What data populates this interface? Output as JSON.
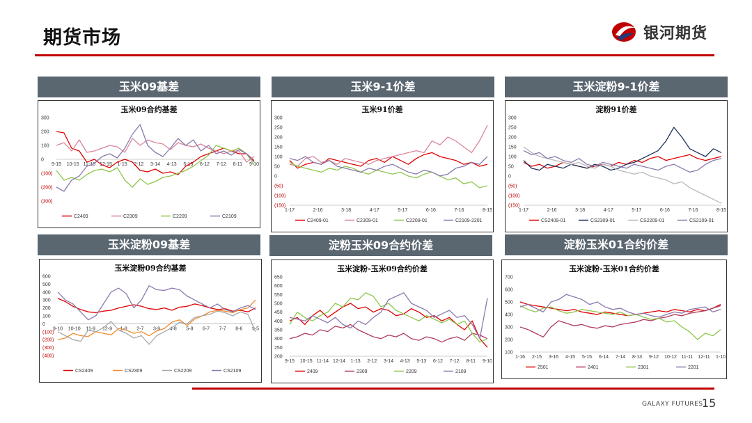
{
  "page": {
    "title": "期货市场",
    "brand": "银河期货",
    "footer": "GALAXY FUTURES",
    "page_number": "15"
  },
  "colors": {
    "accent": "#c00000",
    "header_bg": "#5a6670"
  },
  "panels": [
    {
      "header": "玉米09基差"
    },
    {
      "header": "玉米9-1价差"
    },
    {
      "header": "玉米淀粉9-1价差"
    },
    {
      "header": "玉米淀粉09基差"
    },
    {
      "header": "淀粉玉米09合约价差"
    },
    {
      "header": "淀粉玉米01合约价差"
    }
  ],
  "chart_data": [
    {
      "type": "line",
      "title": "玉米09合约基差",
      "ylim": [
        -300,
        300
      ],
      "yticks": [
        -300,
        -200,
        -100,
        0,
        100,
        200,
        300
      ],
      "xticks": [
        "9-15",
        "10-15",
        "11-15",
        "12-15",
        "1-15",
        "2-12",
        "3-14",
        "4-13",
        "5-13",
        "6-12",
        "7-12",
        "8-11",
        "9-10"
      ],
      "xaxis_at": 0,
      "series": [
        {
          "name": "C2409",
          "color": "#e00000",
          "values": [
            200,
            190,
            80,
            60,
            -20,
            0,
            -40,
            -60,
            -20,
            0,
            -20,
            -80,
            -90,
            -70,
            -100,
            -90,
            -110,
            -50,
            -20,
            20,
            40,
            60,
            80,
            60,
            40,
            40,
            -10
          ]
        },
        {
          "name": "C2309",
          "color": "#d9869a",
          "values": [
            100,
            120,
            60,
            140,
            50,
            60,
            80,
            100,
            90,
            50,
            150,
            100,
            140,
            120,
            110,
            70,
            120,
            100,
            90,
            110,
            80,
            60,
            40,
            60,
            60,
            -20,
            20
          ]
        },
        {
          "name": "C2209",
          "color": "#8fc54a",
          "values": [
            -80,
            -150,
            -130,
            -150,
            -110,
            -80,
            -70,
            -90,
            -60,
            -150,
            -200,
            -140,
            -180,
            -160,
            -130,
            -120,
            -100,
            -80,
            -50,
            -10,
            30,
            100,
            80,
            60,
            80,
            40,
            -40
          ]
        },
        {
          "name": "C2109",
          "color": "#8a79ad",
          "values": [
            -200,
            -230,
            -150,
            -120,
            -50,
            -30,
            20,
            40,
            10,
            80,
            180,
            250,
            100,
            50,
            20,
            80,
            150,
            100,
            140,
            60,
            100,
            40,
            60,
            30,
            70,
            40,
            -20
          ]
        }
      ]
    },
    {
      "type": "line",
      "title": "玉米91价差",
      "ylim": [
        -150,
        300
      ],
      "yticks": [
        -150,
        -100,
        -50,
        0,
        50,
        100,
        150,
        200,
        250,
        300
      ],
      "xticks": [
        "1-17",
        "2-16",
        "3-18",
        "4-17",
        "5-17",
        "6-16",
        "7-16",
        "8-15"
      ],
      "xaxis_at": -150,
      "series": [
        {
          "name": "C2409-01",
          "color": "#e00000",
          "values": [
            80,
            40,
            60,
            70,
            60,
            90,
            80,
            70,
            60,
            50,
            80,
            90,
            70,
            100,
            80,
            60,
            90,
            110,
            120,
            100,
            90,
            80,
            60,
            70,
            50,
            60
          ]
        },
        {
          "name": "C2309-01",
          "color": "#d9869a",
          "values": [
            60,
            50,
            90,
            100,
            70,
            80,
            60,
            90,
            80,
            70,
            60,
            80,
            90,
            100,
            110,
            120,
            130,
            120,
            180,
            160,
            200,
            180,
            150,
            120,
            180,
            260
          ]
        },
        {
          "name": "C2209-01",
          "color": "#8fc54a",
          "values": [
            70,
            50,
            40,
            30,
            20,
            40,
            30,
            50,
            40,
            20,
            10,
            30,
            20,
            10,
            20,
            0,
            -10,
            10,
            20,
            0,
            -20,
            -10,
            -40,
            -30,
            -60,
            -50
          ]
        },
        {
          "name": "C2109-2201",
          "color": "#8a79ad",
          "values": [
            90,
            80,
            100,
            70,
            60,
            80,
            50,
            40,
            30,
            20,
            40,
            30,
            50,
            60,
            40,
            20,
            10,
            30,
            20,
            0,
            10,
            40,
            50,
            70,
            60,
            100
          ]
        }
      ]
    },
    {
      "type": "line",
      "title": "淀粉91价差",
      "ylim": [
        -150,
        300
      ],
      "yticks": [
        -150,
        -100,
        -50,
        0,
        50,
        100,
        150,
        200,
        250,
        300
      ],
      "xticks": [
        "1-17",
        "2-16",
        "3-18",
        "4-17",
        "5-17",
        "6-16",
        "7-16",
        "8-15"
      ],
      "xaxis_at": -150,
      "series": [
        {
          "name": "CS2409-01",
          "color": "#e00000",
          "values": [
            70,
            50,
            60,
            40,
            50,
            70,
            60,
            50,
            40,
            50,
            60,
            50,
            70,
            60,
            80,
            70,
            90,
            100,
            80,
            90,
            100,
            110,
            90,
            80,
            90,
            100
          ]
        },
        {
          "name": "CS2309-01",
          "color": "#1f2f5a",
          "values": [
            80,
            40,
            30,
            60,
            50,
            40,
            60,
            50,
            40,
            60,
            50,
            30,
            40,
            60,
            70,
            90,
            110,
            130,
            180,
            250,
            200,
            140,
            120,
            100,
            140,
            120
          ]
        },
        {
          "name": "CS2209-01",
          "color": "#b8b8b8",
          "values": [
            150,
            120,
            100,
            90,
            80,
            70,
            60,
            70,
            50,
            40,
            60,
            50,
            30,
            20,
            10,
            20,
            0,
            -10,
            -20,
            -40,
            -30,
            -60,
            -80,
            -100,
            -120,
            -140
          ]
        },
        {
          "name": "CS2109-01",
          "color": "#8a79ad",
          "values": [
            130,
            110,
            120,
            90,
            100,
            80,
            70,
            90,
            60,
            50,
            70,
            60,
            50,
            40,
            60,
            50,
            40,
            30,
            50,
            60,
            40,
            20,
            30,
            60,
            80,
            90
          ]
        }
      ]
    },
    {
      "type": "line",
      "title": "玉米淀粉09合约基差",
      "ylim": [
        -400,
        600
      ],
      "yticks": [
        -400,
        -300,
        -200,
        -100,
        0,
        100,
        200,
        300,
        400,
        500,
        600
      ],
      "xticks": [
        "9-10",
        "10-10",
        "11-9",
        "12-9",
        "1-8",
        "2-7",
        "3-9",
        "4-8",
        "5-8",
        "6-7",
        "7-7",
        "8-6",
        "9-5"
      ],
      "xaxis_at": 0,
      "series": [
        {
          "name": "CS2409",
          "color": "#e00000",
          "values": [
            320,
            280,
            220,
            180,
            150,
            140,
            160,
            170,
            200,
            220,
            240,
            220,
            190,
            180,
            200,
            170,
            210,
            220,
            250,
            230,
            200,
            180,
            190,
            160,
            170,
            150,
            200
          ]
        },
        {
          "name": "CS2309",
          "color": "#f08a2a",
          "values": [
            -200,
            -180,
            -120,
            -150,
            -160,
            -100,
            -120,
            -140,
            -60,
            -80,
            -120,
            -100,
            -150,
            -90,
            -60,
            20,
            50,
            -20,
            60,
            100,
            150,
            170,
            160,
            140,
            180,
            200,
            300
          ]
        },
        {
          "name": "CS2209",
          "color": "#a8a8a8",
          "values": [
            -100,
            -150,
            -200,
            -220,
            -80,
            -100,
            -50,
            30,
            -80,
            -120,
            -180,
            -150,
            -260,
            -150,
            -100,
            -50,
            20,
            0,
            80,
            100,
            120,
            160,
            140,
            100,
            150,
            120,
            -100
          ]
        },
        {
          "name": "CS2109",
          "color": "#8a79ad",
          "values": [
            400,
            300,
            250,
            150,
            50,
            100,
            250,
            400,
            450,
            380,
            200,
            300,
            480,
            430,
            420,
            450,
            430,
            350,
            300,
            250,
            200,
            250,
            180,
            150,
            200,
            230,
            180
          ]
        }
      ]
    },
    {
      "type": "line",
      "title": "玉米淀粉-玉米09合约价差",
      "ylim": [
        200,
        650
      ],
      "yticks": [
        200,
        250,
        300,
        350,
        400,
        450,
        500,
        550,
        600,
        650
      ],
      "xticks": [
        "9-15",
        "10-15",
        "11-14",
        "12-14",
        "1-13",
        "2-12",
        "3-14",
        "4-13",
        "5-13",
        "6-12",
        "7-12",
        "8-11",
        "9-10"
      ],
      "xaxis_at": 200,
      "series": [
        {
          "name": "2409",
          "color": "#e00000",
          "values": [
            400,
            420,
            380,
            430,
            460,
            420,
            450,
            480,
            500,
            470,
            480,
            450,
            470,
            460,
            430,
            440,
            470,
            450,
            420,
            430,
            400,
            420,
            380,
            350,
            400,
            300,
            250
          ]
        },
        {
          "name": "2309",
          "color": "#b03a5a",
          "values": [
            300,
            310,
            330,
            320,
            350,
            340,
            370,
            360,
            380,
            350,
            330,
            310,
            300,
            320,
            310,
            330,
            300,
            290,
            310,
            300,
            280,
            300,
            310,
            290,
            330,
            320,
            300
          ]
        },
        {
          "name": "2209",
          "color": "#8fc54a",
          "values": [
            380,
            450,
            420,
            400,
            430,
            450,
            500,
            480,
            530,
            520,
            560,
            540,
            480,
            500,
            460,
            440,
            420,
            400,
            430,
            410,
            390,
            410,
            380,
            400,
            330,
            280,
            300
          ]
        },
        {
          "name": "2109",
          "color": "#8a79ad",
          "values": [
            420,
            410,
            400,
            430,
            410,
            390,
            420,
            380,
            360,
            400,
            380,
            420,
            450,
            520,
            540,
            560,
            500,
            480,
            460,
            420,
            440,
            460,
            420,
            430,
            380,
            300,
            530
          ]
        }
      ]
    },
    {
      "type": "line",
      "title": "玉米淀粉-玉米01合约价差",
      "ylim": [
        100,
        700
      ],
      "yticks": [
        100,
        200,
        300,
        400,
        500,
        600,
        700
      ],
      "xticks": [
        "1-16",
        "2-15",
        "3-16",
        "4-15",
        "5-15",
        "6-14",
        "7-14",
        "8-13",
        "9-12",
        "10-12",
        "11-11",
        "12-11",
        "1-10"
      ],
      "xaxis_at": 100,
      "series": [
        {
          "name": "2501",
          "color": "#e00000",
          "values": [
            500,
            480,
            470,
            460,
            450,
            440,
            430,
            440,
            420,
            410,
            400,
            420,
            410,
            400,
            390,
            400,
            410,
            420,
            430,
            420,
            440,
            430,
            420,
            440,
            430,
            450,
            480
          ]
        },
        {
          "name": "2401",
          "color": "#b03a5a",
          "values": [
            300,
            280,
            250,
            220,
            300,
            350,
            330,
            310,
            320,
            300,
            290,
            310,
            300,
            320,
            330,
            340,
            360,
            350,
            370,
            380,
            400,
            390,
            410,
            420,
            430,
            450,
            470
          ]
        },
        {
          "name": "2301",
          "color": "#8fc54a",
          "values": [
            470,
            440,
            420,
            450,
            460,
            430,
            410,
            420,
            440,
            430,
            420,
            410,
            400,
            420,
            390,
            400,
            380,
            360,
            370,
            340,
            350,
            300,
            260,
            200,
            250,
            230,
            280
          ]
        },
        {
          "name": "2201",
          "color": "#8a79ad",
          "values": [
            460,
            480,
            450,
            420,
            500,
            520,
            560,
            540,
            520,
            480,
            500,
            460,
            440,
            450,
            420,
            400,
            410,
            390,
            380,
            400,
            420,
            410,
            440,
            450,
            460,
            420,
            440
          ]
        }
      ]
    }
  ]
}
